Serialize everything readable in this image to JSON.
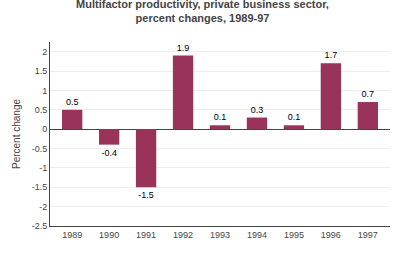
{
  "chart_data": {
    "type": "bar",
    "title": "Multifactor productivity, private business sector,\npercent changes, 1989-97",
    "ylabel": "Percent change",
    "x": [
      1989,
      1990,
      1991,
      1992,
      1993,
      1994,
      1995,
      1996,
      1997
    ],
    "values": [
      0.5,
      -0.4,
      -1.5,
      1.9,
      0.1,
      0.3,
      0.1,
      1.7,
      0.7
    ],
    "color": "#99335a",
    "xlim": [
      1988.4,
      1997.6
    ],
    "xticks": [
      1989,
      1990,
      1991,
      1992,
      1993,
      1994,
      1995,
      1996,
      1997
    ],
    "ylim": [
      -2.5,
      2.25
    ],
    "yticks": [
      -2.5,
      -2,
      -1.5,
      -1,
      -0.5,
      0,
      0.5,
      1,
      1.5,
      2
    ],
    "grid": true,
    "data_labels": true
  }
}
